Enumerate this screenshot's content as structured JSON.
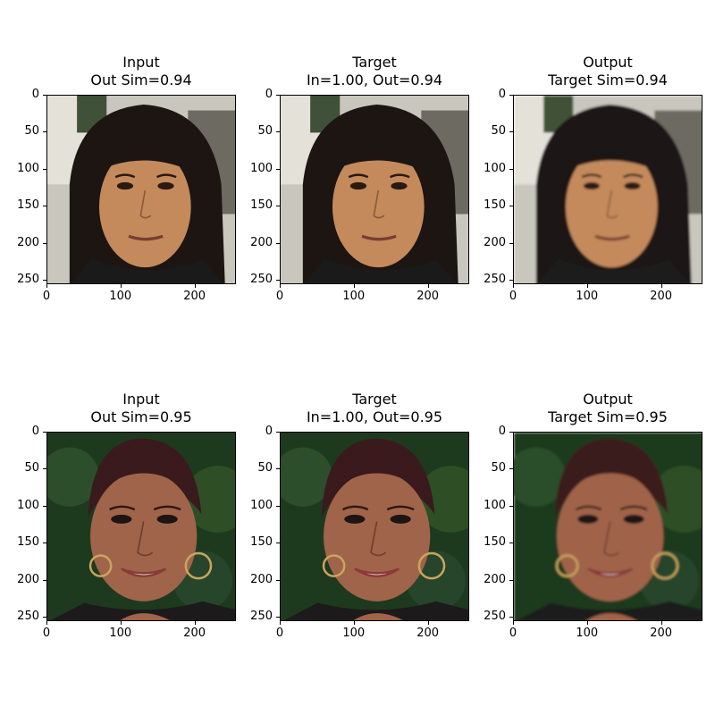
{
  "rows": [
    {
      "panels": [
        {
          "title_line1": "Input",
          "title_line2": "Out Sim=0.94",
          "variant": "a",
          "style": "sharp"
        },
        {
          "title_line1": "Target",
          "title_line2": "In=1.00, Out=0.94",
          "variant": "a",
          "style": "sharp"
        },
        {
          "title_line1": "Output",
          "title_line2": "Target Sim=0.94",
          "variant": "a",
          "style": "smooth"
        }
      ]
    },
    {
      "panels": [
        {
          "title_line1": "Input",
          "title_line2": "Out Sim=0.95",
          "variant": "b",
          "style": "sharp"
        },
        {
          "title_line1": "Target",
          "title_line2": "In=1.00, Out=0.95",
          "variant": "b",
          "style": "sharp"
        },
        {
          "title_line1": "Output",
          "title_line2": "Target Sim=0.95",
          "variant": "b",
          "style": "smooth"
        }
      ]
    }
  ],
  "axes": {
    "y_ticks": [
      "0",
      "50",
      "100",
      "150",
      "200",
      "250"
    ],
    "x_ticks": [
      "0",
      "100",
      "200"
    ]
  },
  "colors": {
    "face_a": "#c48a5c",
    "hair_a": "#1c1512",
    "bg_a": "#c9c6bd",
    "face_b": "#a0644a",
    "hair_b": "#3a1a1c",
    "bg_b": "#1e3a1e"
  }
}
